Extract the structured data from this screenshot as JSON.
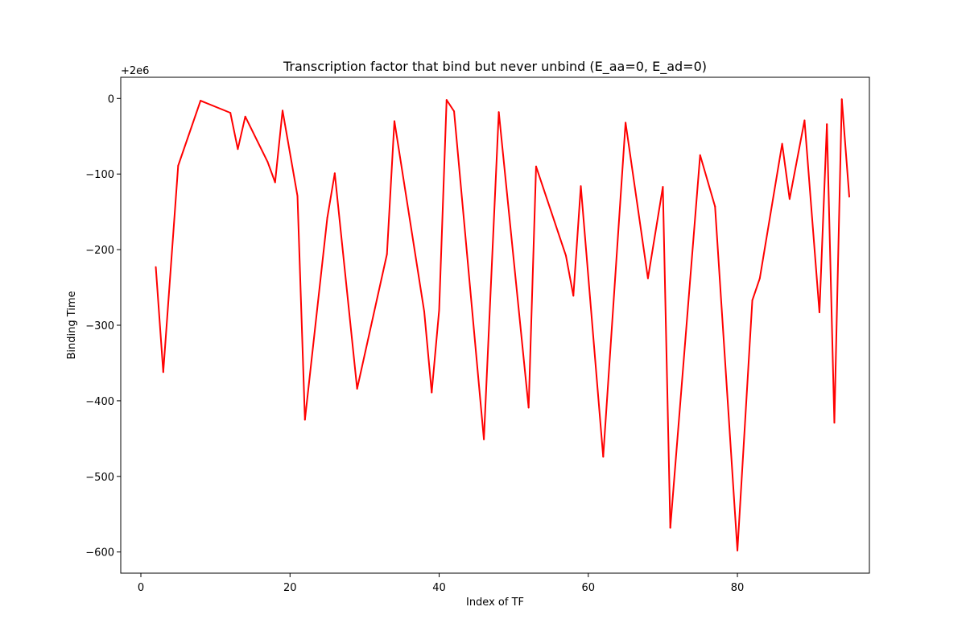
{
  "chart_data": {
    "type": "line",
    "title": "Transcription factor that bind but never unbind (E_aa=0, E_ad=0)",
    "xlabel": "Index of TF",
    "ylabel": "Binding Time",
    "offset_label": "+2e6",
    "xlim": [
      -2.7,
      97.7
    ],
    "ylim": [
      -628,
      28
    ],
    "xticks": [
      0,
      20,
      40,
      60,
      80
    ],
    "yticks": [
      0,
      -100,
      -200,
      -300,
      -400,
      -500,
      -600
    ],
    "grid": false,
    "legend": null,
    "color": "#ff0000",
    "series": [
      {
        "x": [
          2,
          3,
          5,
          8,
          12,
          13,
          14,
          17,
          18,
          19,
          21,
          22,
          25,
          26,
          29,
          33,
          34,
          38,
          39,
          40,
          41,
          42,
          46,
          48,
          52,
          53,
          57,
          58,
          59,
          62,
          65,
          68,
          70,
          71,
          75,
          77,
          80,
          82,
          83,
          86,
          87,
          89,
          91,
          92,
          93,
          94,
          95
        ],
        "y": [
          -223,
          -362,
          -89,
          -3,
          -19,
          -67,
          -24,
          -84,
          -111,
          -16,
          -129,
          -425,
          -158,
          -99,
          -384,
          -206,
          -30,
          -282,
          -389,
          -280,
          -2,
          -17,
          -451,
          -18,
          -409,
          -90,
          -208,
          -261,
          -116,
          -474,
          -32,
          -238,
          -117,
          -568,
          -75,
          -143,
          -598,
          -267,
          -238,
          -60,
          -133,
          -29,
          -283,
          -34,
          -429,
          -1,
          -130
        ]
      }
    ]
  }
}
